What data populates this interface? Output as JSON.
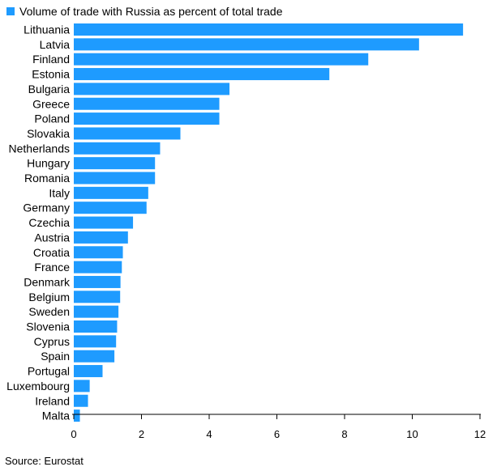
{
  "chart_data": {
    "type": "bar",
    "orientation": "horizontal",
    "legend": "Volume of trade with Russia as percent of total trade",
    "categories": [
      "Lithuania",
      "Latvia",
      "Finland",
      "Estonia",
      "Bulgaria",
      "Greece",
      "Poland",
      "Slovakia",
      "Netherlands",
      "Hungary",
      "Romania",
      "Italy",
      "Germany",
      "Czechia",
      "Austria",
      "Croatia",
      "France",
      "Denmark",
      "Belgium",
      "Sweden",
      "Slovenia",
      "Cyprus",
      "Spain",
      "Portugal",
      "Luxembourg",
      "Ireland",
      "Malta"
    ],
    "values": [
      11.5,
      10.2,
      8.7,
      7.55,
      4.6,
      4.3,
      4.3,
      3.15,
      2.55,
      2.4,
      2.4,
      2.2,
      2.15,
      1.75,
      1.6,
      1.45,
      1.42,
      1.38,
      1.37,
      1.32,
      1.28,
      1.25,
      1.2,
      0.85,
      0.47,
      0.42,
      0.18
    ],
    "xlim": [
      0,
      12
    ],
    "xticks": [
      0,
      2,
      4,
      6,
      8,
      10,
      12
    ],
    "bar_color": "#1e9bff",
    "axis_color": "#000000",
    "source": "Source: Eurostat"
  }
}
